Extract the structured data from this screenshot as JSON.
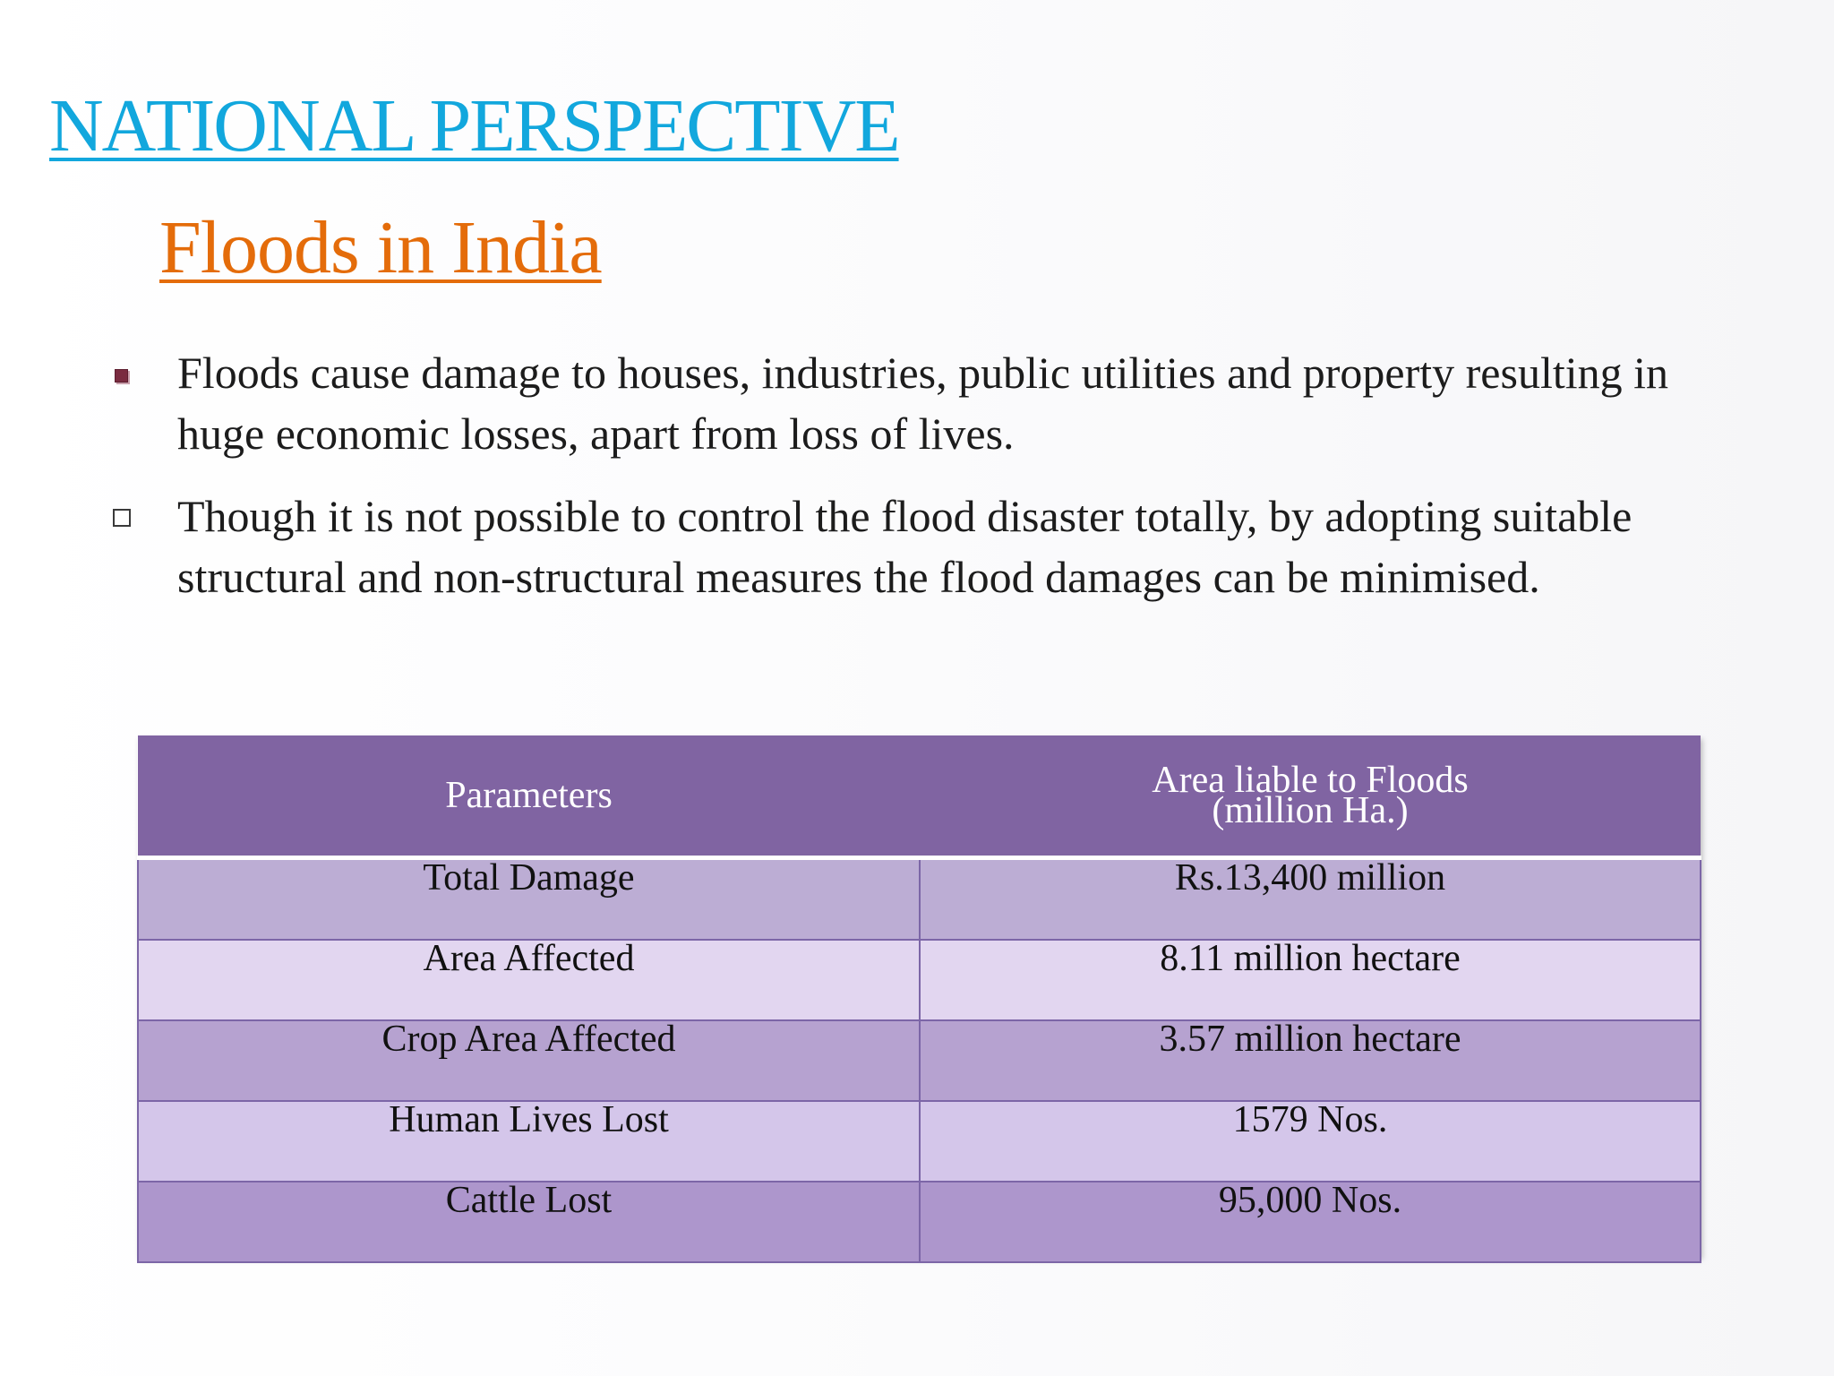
{
  "slide": {
    "title": "NATIONAL PERSPECTIVE",
    "subtitle": "Floods in India",
    "bullets": [
      {
        "text": "Floods cause damage to houses, industries, public utilities and property resulting in huge economic losses, apart from loss of  lives.",
        "marker": "filled-square-bullet-icon"
      },
      {
        "text": "Though it is not possible to control the flood disaster totally, by adopting suitable structural and non-structural measures the flood damages can be minimised.",
        "marker": "hollow-square-bullet-icon"
      }
    ]
  },
  "table": {
    "headers": [
      "Parameters",
      "Area liable to Floods",
      "(million Ha.)"
    ],
    "rows": [
      [
        "Total Damage",
        "Rs.13,400 million"
      ],
      [
        "Area Affected",
        "8.11 million hectare"
      ],
      [
        "Crop Area Affected",
        "3.57 million hectare"
      ],
      [
        "Human Lives Lost",
        "1579 Nos."
      ],
      [
        "Cattle Lost",
        "95,000 Nos."
      ]
    ]
  },
  "colors": {
    "title": "#12a7dd",
    "subtitle": "#e46c0a",
    "table_header": "#8064a2"
  }
}
